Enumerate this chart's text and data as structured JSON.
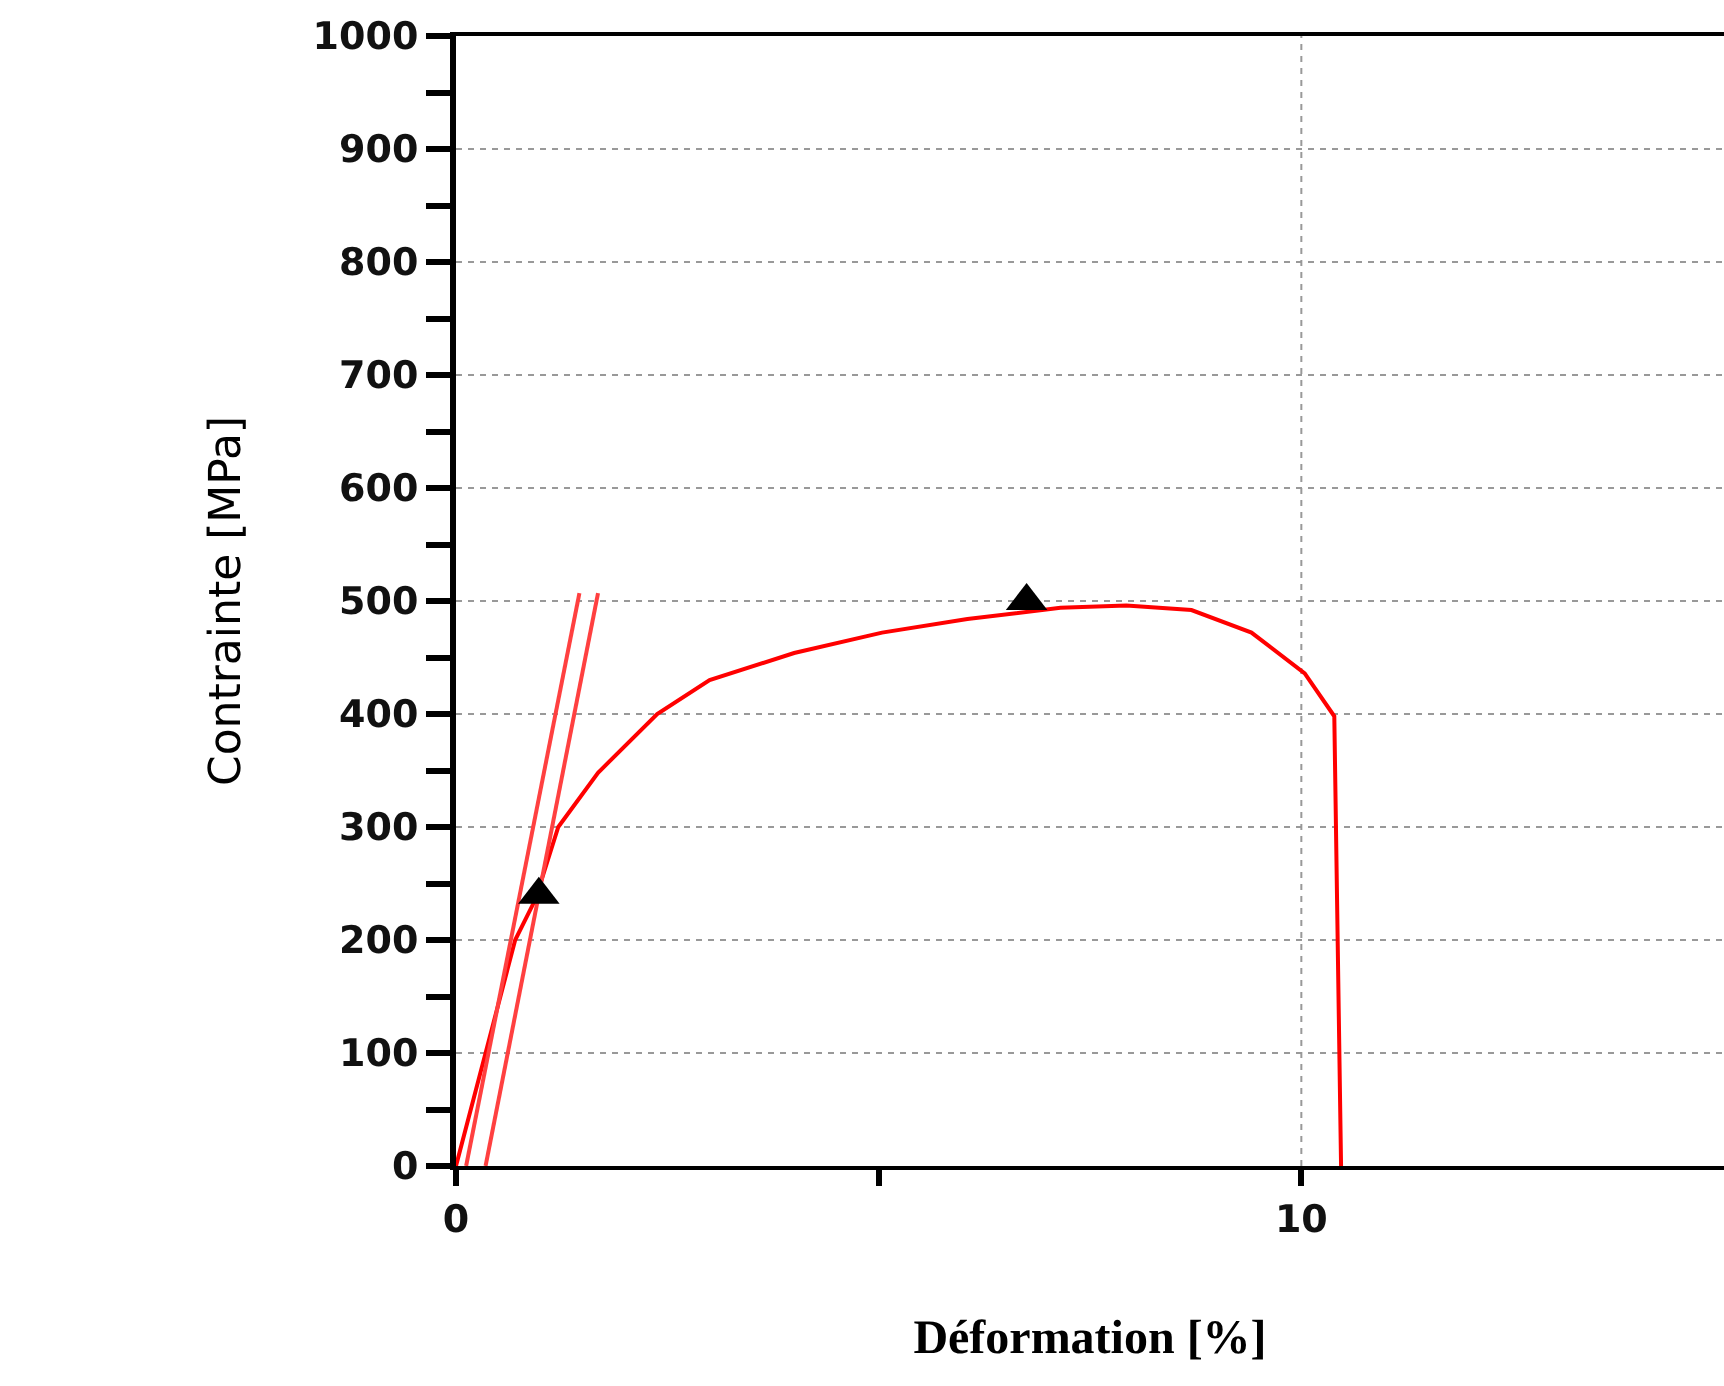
{
  "chart_data": {
    "type": "line",
    "xlabel": "Déformation [%]",
    "ylabel": "Contrainte [MPa]",
    "xlim": [
      0,
      15
    ],
    "xticks": [
      0,
      {
        "value": 5,
        "label": null
      },
      10
    ],
    "ylim": [
      0,
      1000
    ],
    "yticks": [
      0,
      {
        "value": 50,
        "label": null
      },
      100,
      {
        "value": 150,
        "label": null
      },
      200,
      {
        "value": 250,
        "label": null
      },
      300,
      {
        "value": 350,
        "label": null
      },
      400,
      {
        "value": 450,
        "label": null
      },
      500,
      {
        "value": 550,
        "label": null
      },
      600,
      {
        "value": 650,
        "label": null
      },
      700,
      {
        "value": 750,
        "label": null
      },
      800,
      {
        "value": 850,
        "label": null
      },
      900,
      {
        "value": 950,
        "label": null
      },
      1000
    ],
    "grid": true,
    "line_style": "solid",
    "marker": "none",
    "series": [
      {
        "color": "#ff0000",
        "x": [
          0,
          0.35,
          0.7,
          0.94,
          1.21,
          1.68,
          2.38,
          3.0,
          4.0,
          5.04,
          6.05,
          7.15,
          7.93,
          8.7,
          9.41,
          10.04,
          10.39,
          10.47
        ],
        "values": [
          0,
          100,
          200,
          236,
          300,
          348,
          400,
          430,
          454,
          472,
          484,
          494,
          496,
          492,
          472,
          436,
          398,
          0
        ]
      },
      {
        "color": "#ff4040",
        "x": [
          0.12,
          1.46
        ],
        "values": [
          0,
          507
        ]
      },
      {
        "color": "#ff4040",
        "x": [
          0.35,
          1.68
        ],
        "values": [
          0,
          507
        ]
      },
      {
        "type": "scatter",
        "color": "#000000",
        "marker": "triangle",
        "x": [
          0.98,
          6.75
        ],
        "values": [
          240,
          500
        ]
      }
    ]
  }
}
